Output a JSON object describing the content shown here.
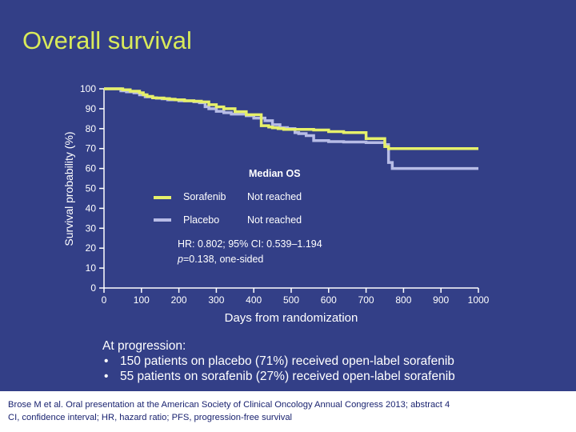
{
  "slide": {
    "title": "Overall survival",
    "notes_heading": "At progression:",
    "notes": [
      "150 patients on placebo (71%) received open-label sorafenib",
      "55 patients on sorafenib (27%) received open-label sorafenib"
    ],
    "footer_lines": [
      "Brose M et al. Oral presentation at the American Society of Clinical Oncology Annual Congress 2013; abstract 4",
      "CI, confidence interval; HR, hazard ratio; PFS, progression-free survival"
    ]
  },
  "chart_data": {
    "type": "line",
    "step": true,
    "xlabel": "Days from randomization",
    "ylabel": "Survival probability (%)",
    "xlim": [
      0,
      1000
    ],
    "ylim": [
      0,
      100
    ],
    "xticks": [
      "0",
      "100",
      "200",
      "300",
      "400",
      "500",
      "600",
      "700",
      "800",
      "900",
      "1000"
    ],
    "yticks": [
      "0",
      "10",
      "20",
      "30",
      "40",
      "50",
      "60",
      "70",
      "80",
      "90",
      "100"
    ],
    "legend": {
      "title": "Median OS",
      "placement": "center-right",
      "entries": [
        {
          "name": "Sorafenib",
          "value": "Not reached"
        },
        {
          "name": "Placebo",
          "value": "Not reached"
        }
      ]
    },
    "annotation_line1": "HR: 0.802; 95% CI: 0.539–1.194",
    "annotation_p": "p",
    "annotation_line2_rest": "=0.138, one-sided",
    "colors": {
      "Sorafenib": "#e6f06a",
      "Placebo": "#b7bce6"
    },
    "series": [
      {
        "name": "Sorafenib",
        "x": [
          0,
          40,
          50,
          70,
          95,
          105,
          115,
          130,
          140,
          160,
          175,
          190,
          215,
          240,
          260,
          280,
          300,
          320,
          350,
          380,
          420,
          440,
          450,
          465,
          480,
          560,
          600,
          640,
          700,
          750,
          760,
          800,
          1000
        ],
        "y": [
          100,
          100,
          99.5,
          98.8,
          98,
          97,
          96.2,
          95.5,
          95.4,
          95.1,
          94.8,
          94.5,
          94,
          93.8,
          93.4,
          92,
          90.9,
          90,
          88.5,
          87,
          81.5,
          80.8,
          80.4,
          80,
          79.6,
          79.3,
          78.5,
          78,
          75,
          71,
          70,
          70,
          70
        ]
      },
      {
        "name": "Placebo",
        "x": [
          0,
          30,
          45,
          60,
          80,
          95,
          110,
          130,
          140,
          155,
          170,
          200,
          240,
          255,
          270,
          280,
          300,
          320,
          340,
          380,
          400,
          430,
          450,
          470,
          490,
          510,
          520,
          540,
          560,
          600,
          640,
          700,
          750,
          760,
          770,
          800,
          1000
        ],
        "y": [
          100,
          100,
          99,
          98.5,
          98,
          97,
          96,
          95.5,
          95.3,
          95,
          94.5,
          94,
          93.5,
          93,
          91,
          90,
          88.7,
          88,
          87.3,
          86.5,
          85.3,
          84,
          82,
          80.5,
          80,
          78,
          77.5,
          76.5,
          74,
          73.5,
          73.3,
          73,
          72,
          63,
          60,
          60,
          60
        ]
      }
    ]
  }
}
